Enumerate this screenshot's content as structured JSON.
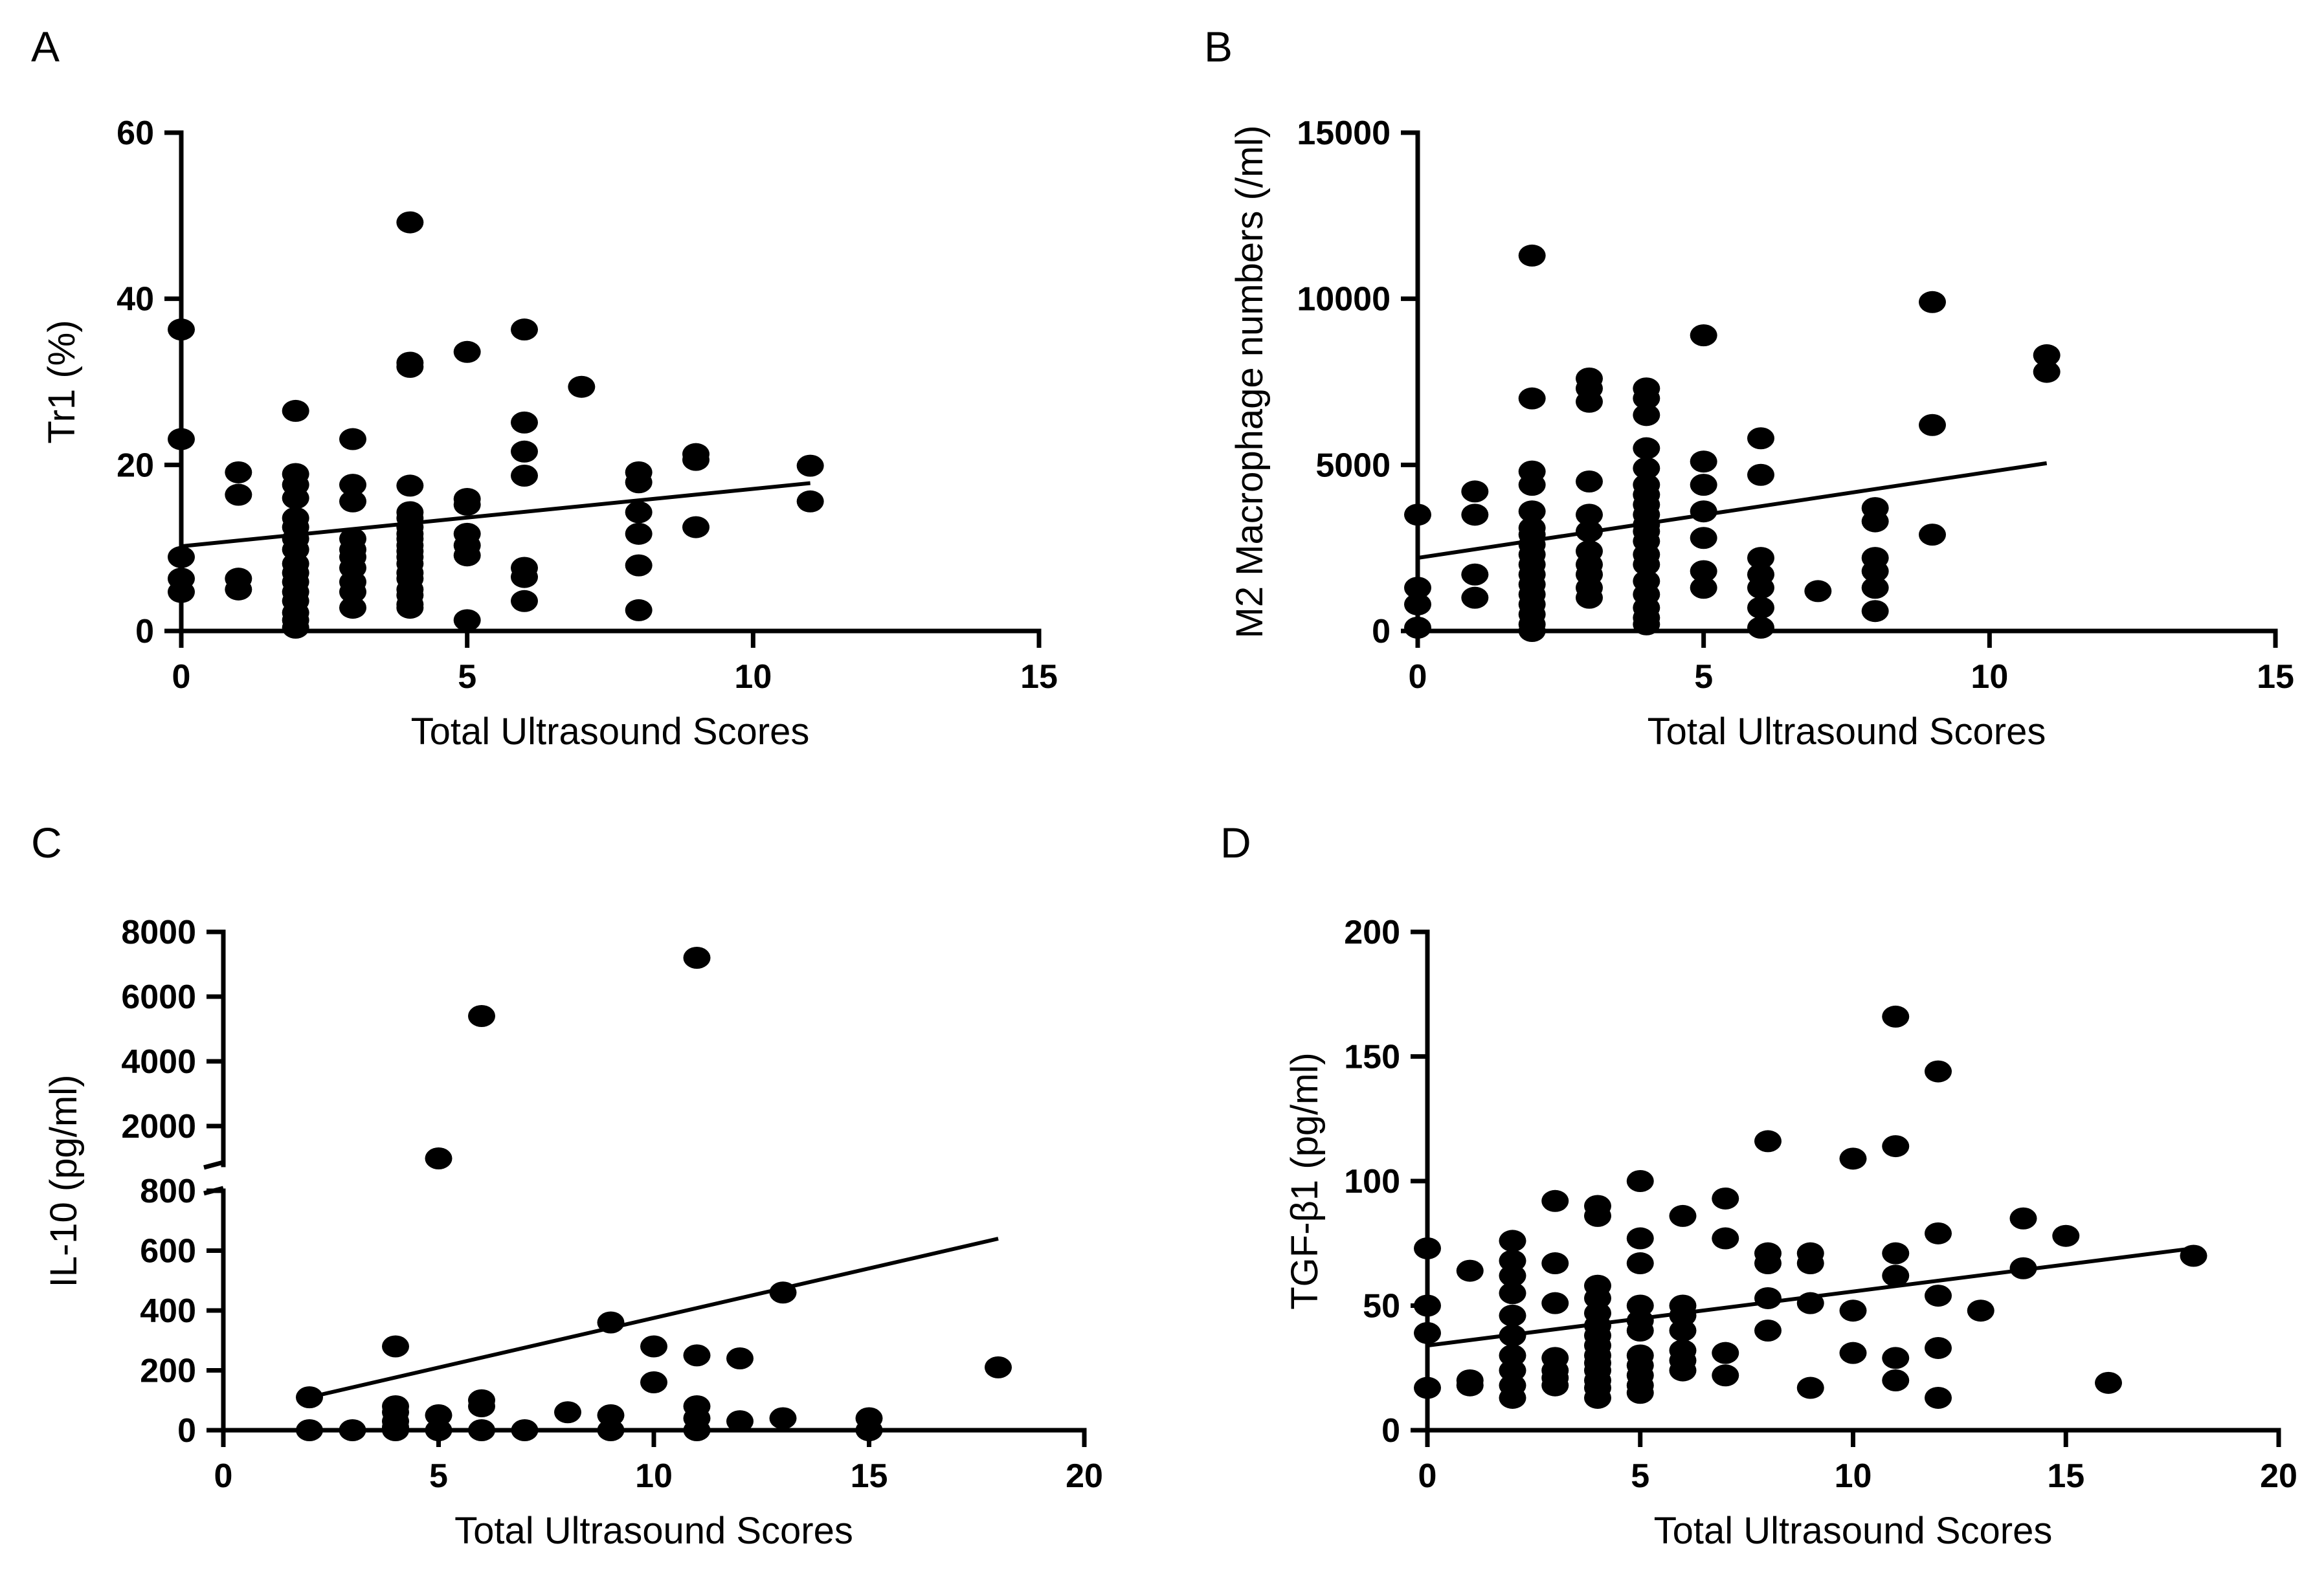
{
  "figure": {
    "background": "#ffffff",
    "ink": "#000000"
  },
  "chart_data": [
    {
      "id": "A",
      "type": "scatter",
      "panel_label": "A",
      "xlabel": "Total Ultrasound Scores",
      "ylabel": "Tr1 (%)",
      "xlim": [
        0,
        15
      ],
      "ylim": [
        0,
        60
      ],
      "xticks": [
        0,
        5,
        10,
        15
      ],
      "yticks": [
        0,
        20,
        40,
        60
      ],
      "fit": [
        [
          0,
          10.2
        ],
        [
          11,
          17.8
        ]
      ],
      "points": [
        [
          0,
          36.3
        ],
        [
          0,
          23.1
        ],
        [
          0,
          8.9
        ],
        [
          0,
          6.3
        ],
        [
          0,
          4.7
        ],
        [
          1,
          19.1
        ],
        [
          1,
          16.4
        ],
        [
          1,
          6.3
        ],
        [
          1,
          5.0
        ],
        [
          2,
          26.5
        ],
        [
          2,
          18.9
        ],
        [
          2,
          17.6
        ],
        [
          2,
          16.0
        ],
        [
          2,
          13.6
        ],
        [
          2,
          12.5
        ],
        [
          2,
          11.1
        ],
        [
          2,
          9.8
        ],
        [
          2,
          8.1
        ],
        [
          2,
          7.0
        ],
        [
          2,
          5.9
        ],
        [
          2,
          4.7
        ],
        [
          2,
          3.6
        ],
        [
          2,
          2.2
        ],
        [
          2,
          1.3
        ],
        [
          2,
          0.4
        ],
        [
          3,
          23.1
        ],
        [
          3,
          17.6
        ],
        [
          3,
          15.6
        ],
        [
          3,
          11.1
        ],
        [
          3,
          9.8
        ],
        [
          3,
          8.9
        ],
        [
          3,
          7.6
        ],
        [
          3,
          5.9
        ],
        [
          3,
          4.7
        ],
        [
          3,
          2.8
        ],
        [
          4,
          49.2
        ],
        [
          4,
          32.3
        ],
        [
          4,
          31.8
        ],
        [
          4,
          17.5
        ],
        [
          4,
          14.3
        ],
        [
          4,
          13.6
        ],
        [
          4,
          12.5
        ],
        [
          4,
          11.7
        ],
        [
          4,
          11.1
        ],
        [
          4,
          10.3
        ],
        [
          4,
          9.6
        ],
        [
          4,
          8.9
        ],
        [
          4,
          8.1
        ],
        [
          4,
          7.0
        ],
        [
          4,
          6.3
        ],
        [
          4,
          5.0
        ],
        [
          4,
          4.3
        ],
        [
          4,
          3.2
        ],
        [
          4,
          2.8
        ],
        [
          5,
          33.6
        ],
        [
          5,
          15.9
        ],
        [
          5,
          15.2
        ],
        [
          5,
          11.7
        ],
        [
          5,
          10.3
        ],
        [
          5,
          9.1
        ],
        [
          5,
          1.3
        ],
        [
          6,
          36.3
        ],
        [
          6,
          25.1
        ],
        [
          6,
          21.6
        ],
        [
          6,
          18.7
        ],
        [
          6,
          7.6
        ],
        [
          6,
          6.5
        ],
        [
          6,
          3.6
        ],
        [
          7,
          29.4
        ],
        [
          8,
          19.1
        ],
        [
          8,
          17.9
        ],
        [
          8,
          14.3
        ],
        [
          8,
          11.7
        ],
        [
          8,
          7.9
        ],
        [
          8,
          2.5
        ],
        [
          9,
          21.3
        ],
        [
          9,
          20.6
        ],
        [
          9,
          12.5
        ],
        [
          11,
          19.9
        ],
        [
          11,
          15.6
        ]
      ]
    },
    {
      "id": "B",
      "type": "scatter",
      "panel_label": "B",
      "xlabel": "Total Ultrasound Scores",
      "ylabel": "M2 Macrophage numbers (/ml)",
      "xlim": [
        0,
        15
      ],
      "ylim": [
        0,
        15000
      ],
      "xticks": [
        0,
        5,
        10,
        15
      ],
      "yticks": [
        0,
        5000,
        10000,
        15000
      ],
      "fit": [
        [
          0,
          2200
        ],
        [
          11,
          5050
        ]
      ],
      "points": [
        [
          0,
          3500
        ],
        [
          0,
          1300
        ],
        [
          0,
          800
        ],
        [
          0,
          100
        ],
        [
          1,
          4200
        ],
        [
          1,
          3500
        ],
        [
          1,
          1700
        ],
        [
          1,
          1000
        ],
        [
          2,
          11300
        ],
        [
          2,
          7000
        ],
        [
          2,
          4800
        ],
        [
          2,
          4400
        ],
        [
          2,
          3600
        ],
        [
          2,
          3100
        ],
        [
          2,
          2900
        ],
        [
          2,
          2600
        ],
        [
          2,
          2300
        ],
        [
          2,
          2000
        ],
        [
          2,
          1700
        ],
        [
          2,
          1400
        ],
        [
          2,
          1100
        ],
        [
          2,
          800
        ],
        [
          2,
          500
        ],
        [
          2,
          200
        ],
        [
          2,
          0
        ],
        [
          3,
          7600
        ],
        [
          3,
          7300
        ],
        [
          3,
          6900
        ],
        [
          3,
          4500
        ],
        [
          3,
          3500
        ],
        [
          3,
          3000
        ],
        [
          3,
          2400
        ],
        [
          3,
          2000
        ],
        [
          3,
          1700
        ],
        [
          3,
          1300
        ],
        [
          3,
          1000
        ],
        [
          4,
          7300
        ],
        [
          4,
          7000
        ],
        [
          4,
          6500
        ],
        [
          4,
          5500
        ],
        [
          4,
          4900
        ],
        [
          4,
          4400
        ],
        [
          4,
          4100
        ],
        [
          4,
          3800
        ],
        [
          4,
          3500
        ],
        [
          4,
          3200
        ],
        [
          4,
          3000
        ],
        [
          4,
          2700
        ],
        [
          4,
          2300
        ],
        [
          4,
          2000
        ],
        [
          4,
          1500
        ],
        [
          4,
          1100
        ],
        [
          4,
          700
        ],
        [
          4,
          400
        ],
        [
          4,
          200
        ],
        [
          5,
          8900
        ],
        [
          5,
          5100
        ],
        [
          5,
          4400
        ],
        [
          5,
          3600
        ],
        [
          5,
          2800
        ],
        [
          5,
          1800
        ],
        [
          5,
          1300
        ],
        [
          6,
          5800
        ],
        [
          6,
          4700
        ],
        [
          6,
          2200
        ],
        [
          6,
          1700
        ],
        [
          6,
          1300
        ],
        [
          6,
          700
        ],
        [
          6,
          100
        ],
        [
          7,
          1200
        ],
        [
          8,
          3700
        ],
        [
          8,
          3300
        ],
        [
          8,
          2200
        ],
        [
          8,
          1800
        ],
        [
          8,
          1300
        ],
        [
          8,
          600
        ],
        [
          9,
          9900
        ],
        [
          9,
          6200
        ],
        [
          9,
          2900
        ],
        [
          11,
          8300
        ],
        [
          11,
          7800
        ]
      ]
    },
    {
      "id": "C",
      "type": "scatter",
      "panel_label": "C",
      "xlabel": "Total Ultrasound Scores",
      "ylabel": "IL-10 (pg/ml)",
      "xlim": [
        0,
        20
      ],
      "ylim_lower": [
        0,
        800
      ],
      "ylim_upper": [
        800,
        8000
      ],
      "broken_axis": true,
      "xticks": [
        0,
        5,
        10,
        15,
        20
      ],
      "yticks_lower": [
        0,
        200,
        400,
        600,
        800
      ],
      "yticks_upper": [
        2000,
        4000,
        6000,
        8000
      ],
      "fit": [
        [
          2,
          110
        ],
        [
          18,
          640
        ]
      ],
      "points": [
        [
          2,
          110
        ],
        [
          2,
          0
        ],
        [
          3,
          0
        ],
        [
          4,
          280
        ],
        [
          4,
          80
        ],
        [
          4,
          60
        ],
        [
          4,
          30
        ],
        [
          4,
          10
        ],
        [
          4,
          0
        ],
        [
          5,
          1000
        ],
        [
          5,
          50
        ],
        [
          5,
          0
        ],
        [
          6,
          5400
        ],
        [
          6,
          100
        ],
        [
          6,
          80
        ],
        [
          6,
          0
        ],
        [
          7,
          0
        ],
        [
          8,
          60
        ],
        [
          9,
          360
        ],
        [
          9,
          50
        ],
        [
          9,
          0
        ],
        [
          10,
          280
        ],
        [
          10,
          160
        ],
        [
          11,
          7200
        ],
        [
          11,
          250
        ],
        [
          11,
          80
        ],
        [
          11,
          40
        ],
        [
          11,
          0
        ],
        [
          12,
          240
        ],
        [
          12,
          30
        ],
        [
          13,
          460
        ],
        [
          13,
          40
        ],
        [
          15,
          40
        ],
        [
          15,
          0
        ],
        [
          18,
          210
        ]
      ]
    },
    {
      "id": "D",
      "type": "scatter",
      "panel_label": "D",
      "xlabel": "Total Ultrasound Scores",
      "ylabel": "TGF-β1 (pg/ml)",
      "xlim": [
        0,
        20
      ],
      "ylim": [
        0,
        200
      ],
      "xticks": [
        0,
        5,
        10,
        15,
        20
      ],
      "yticks": [
        0,
        50,
        100,
        150,
        200
      ],
      "fit": [
        [
          0,
          34
        ],
        [
          18,
          73
        ]
      ],
      "points": [
        [
          0,
          73
        ],
        [
          0,
          50
        ],
        [
          0,
          39
        ],
        [
          0,
          17
        ],
        [
          1,
          64
        ],
        [
          1,
          20
        ],
        [
          1,
          18
        ],
        [
          2,
          76
        ],
        [
          2,
          68
        ],
        [
          2,
          62
        ],
        [
          2,
          55
        ],
        [
          2,
          46
        ],
        [
          2,
          38
        ],
        [
          2,
          30
        ],
        [
          2,
          24
        ],
        [
          2,
          18
        ],
        [
          2,
          13
        ],
        [
          3,
          92
        ],
        [
          3,
          67
        ],
        [
          3,
          51
        ],
        [
          3,
          29
        ],
        [
          3,
          24
        ],
        [
          3,
          21
        ],
        [
          3,
          18
        ],
        [
          4,
          90
        ],
        [
          4,
          86
        ],
        [
          4,
          58
        ],
        [
          4,
          53
        ],
        [
          4,
          47
        ],
        [
          4,
          42
        ],
        [
          4,
          38
        ],
        [
          4,
          34
        ],
        [
          4,
          30
        ],
        [
          4,
          27
        ],
        [
          4,
          24
        ],
        [
          4,
          20
        ],
        [
          4,
          17
        ],
        [
          4,
          13
        ],
        [
          5,
          100
        ],
        [
          5,
          77
        ],
        [
          5,
          67
        ],
        [
          5,
          50
        ],
        [
          5,
          44
        ],
        [
          5,
          40
        ],
        [
          5,
          30
        ],
        [
          5,
          26
        ],
        [
          5,
          22
        ],
        [
          5,
          18
        ],
        [
          5,
          15
        ],
        [
          6,
          86
        ],
        [
          6,
          50
        ],
        [
          6,
          46
        ],
        [
          6,
          40
        ],
        [
          6,
          32
        ],
        [
          6,
          28
        ],
        [
          6,
          24
        ],
        [
          7,
          93
        ],
        [
          7,
          77
        ],
        [
          7,
          31
        ],
        [
          7,
          22
        ],
        [
          8,
          116
        ],
        [
          8,
          71
        ],
        [
          8,
          67
        ],
        [
          8,
          53
        ],
        [
          8,
          40
        ],
        [
          9,
          71
        ],
        [
          9,
          67
        ],
        [
          9,
          51
        ],
        [
          9,
          17
        ],
        [
          10,
          109
        ],
        [
          10,
          48
        ],
        [
          10,
          31
        ],
        [
          11,
          166
        ],
        [
          11,
          114
        ],
        [
          11,
          71
        ],
        [
          11,
          62
        ],
        [
          11,
          29
        ],
        [
          11,
          20
        ],
        [
          12,
          144
        ],
        [
          12,
          79
        ],
        [
          12,
          54
        ],
        [
          12,
          33
        ],
        [
          12,
          13
        ],
        [
          13,
          48
        ],
        [
          14,
          85
        ],
        [
          14,
          65
        ],
        [
          15,
          78
        ],
        [
          16,
          19
        ],
        [
          18,
          70
        ]
      ]
    }
  ]
}
